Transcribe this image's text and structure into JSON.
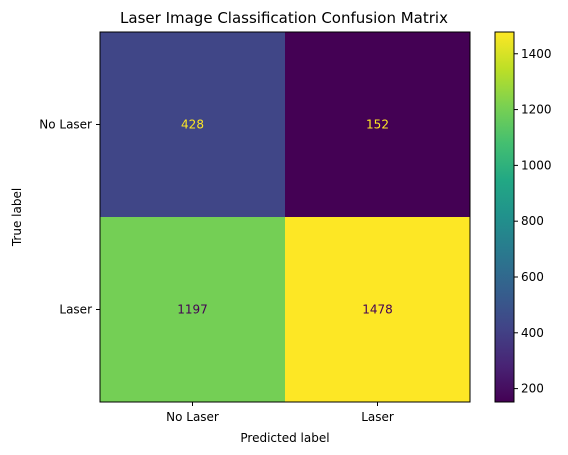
{
  "chart_data": {
    "type": "heatmap",
    "title": "Laser Image Classification Confusion Matrix",
    "xlabel": "Predicted label",
    "ylabel": "True label",
    "x_categories": [
      "No Laser",
      "Laser"
    ],
    "y_categories": [
      "No Laser",
      "Laser"
    ],
    "values": [
      [
        428,
        152
      ],
      [
        1197,
        1478
      ]
    ],
    "colormap": "viridis",
    "colorbar": {
      "ticks": [
        200,
        400,
        600,
        800,
        1000,
        1200,
        1400
      ],
      "tick_labels": [
        "200",
        "400",
        "600",
        "800",
        "1000",
        "1200",
        "1400"
      ],
      "range": [
        152,
        1478
      ]
    },
    "colors": {
      "low": "#440154",
      "high": "#fde725",
      "text_on_dark": "#fde725",
      "text_on_light": "#440154"
    },
    "grid": false
  }
}
